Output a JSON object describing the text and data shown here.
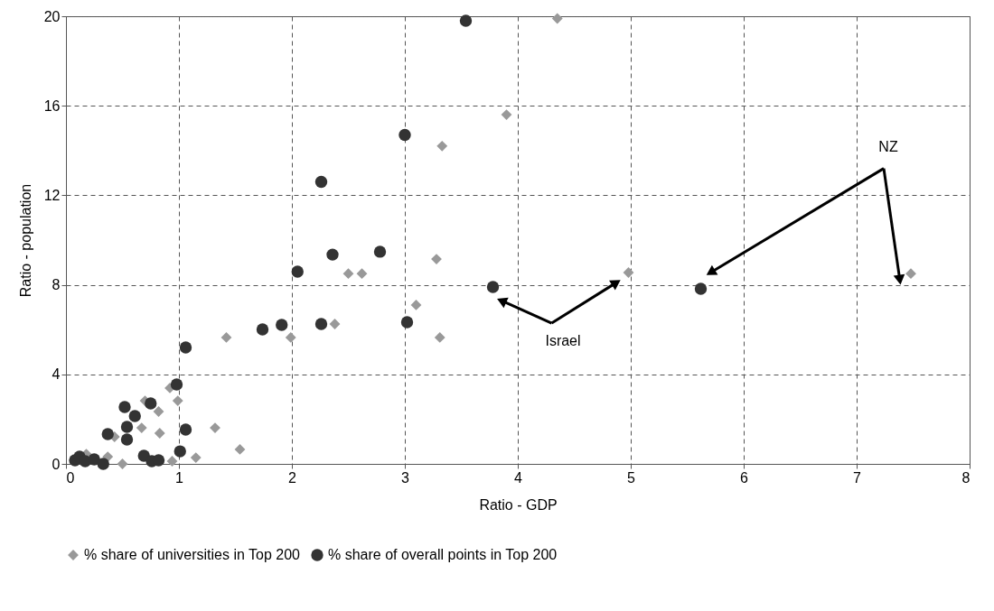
{
  "chart_data": {
    "type": "scatter",
    "xlabel": "Ratio - GDP",
    "ylabel": "Ratio - population",
    "xlim": [
      0,
      8
    ],
    "ylim": [
      0,
      20
    ],
    "xticks": [
      0,
      1,
      2,
      3,
      4,
      5,
      6,
      7,
      8
    ],
    "yticks": [
      0,
      4,
      8,
      12,
      16,
      20
    ],
    "grid": true,
    "legend": "bottom",
    "annotations": [
      "Israel",
      "NZ"
    ],
    "series": [
      {
        "name": "% share of universities in Top 200",
        "color": "#999999",
        "marker": "diamond",
        "x": [
          4.35,
          3.9,
          3.33,
          3.28,
          3.31,
          3.1,
          4.98,
          7.48,
          2.5,
          2.62,
          2.38,
          1.99,
          1.42,
          1.32,
          1.54,
          0.92,
          0.99,
          0.7,
          0.82,
          0.67,
          0.83,
          0.43,
          1.15,
          0.94,
          0.5,
          0.37,
          0.18
        ],
        "values": [
          19.9,
          15.6,
          14.2,
          9.15,
          5.65,
          7.1,
          8.55,
          8.5,
          8.5,
          8.5,
          6.25,
          5.65,
          5.65,
          1.61,
          0.65,
          3.39,
          2.82,
          2.82,
          2.34,
          1.61,
          1.37,
          1.21,
          0.28,
          0.12,
          0,
          0.32,
          0.44
        ]
      },
      {
        "name": "% share of overall points in Top 200",
        "color": "#333333",
        "marker": "circle",
        "x": [
          3.54,
          3.0,
          2.26,
          2.78,
          2.36,
          2.05,
          3.78,
          3.02,
          2.26,
          1.91,
          1.74,
          1.06,
          5.62,
          0.98,
          0.75,
          0.52,
          0.61,
          0.54,
          0.37,
          0.54,
          1.06,
          1.01,
          0.69,
          0.76,
          0.82,
          0.08,
          0.12,
          0.17,
          0.25,
          0.33
        ],
        "values": [
          19.8,
          14.7,
          12.6,
          9.48,
          9.35,
          8.59,
          7.9,
          6.33,
          6.25,
          6.21,
          6.01,
          5.2,
          7.82,
          3.55,
          2.7,
          2.54,
          2.14,
          1.65,
          1.33,
          1.09,
          1.53,
          0.56,
          0.36,
          0.12,
          0.16,
          0.16,
          0.32,
          0.12,
          0.2,
          0
        ]
      }
    ]
  }
}
